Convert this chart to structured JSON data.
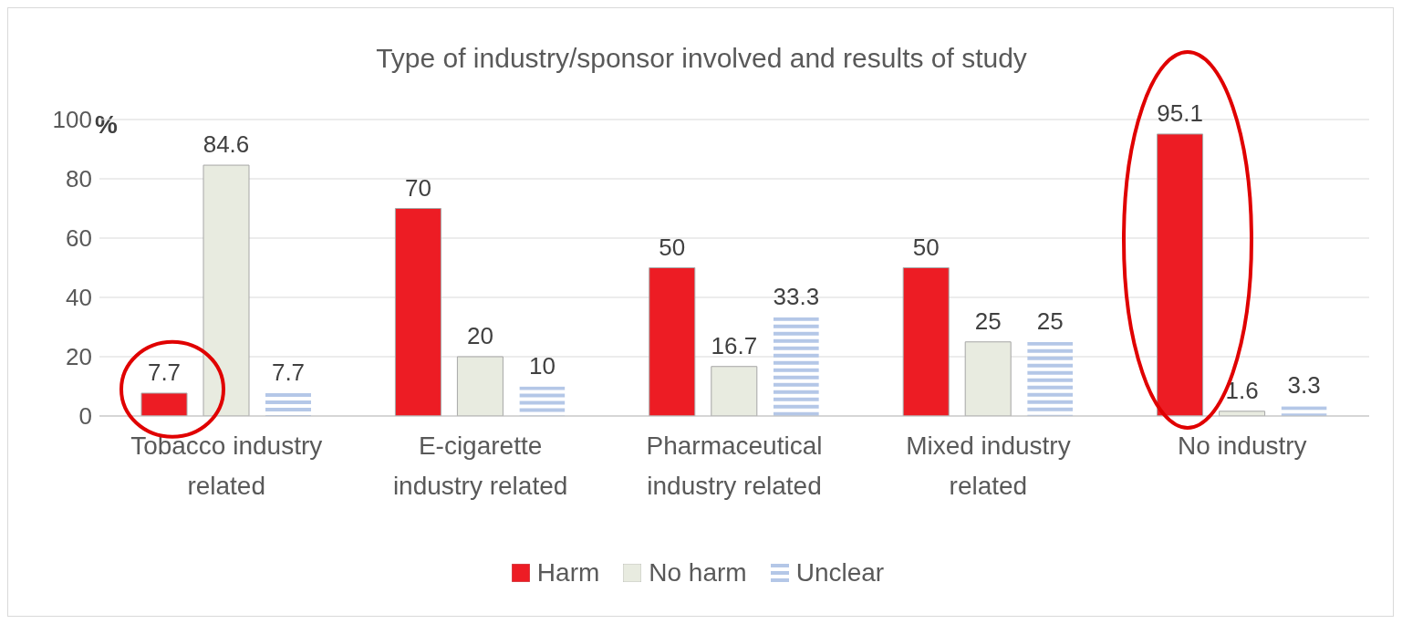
{
  "chart_data": {
    "type": "bar",
    "title": "Type of industry/sponsor involved and results of study",
    "ylabel": "%",
    "categories": [
      "Tobacco industry related",
      "E-cigarette industry related",
      "Pharmaceutical industry related",
      "Mixed industry related",
      "No industry"
    ],
    "series": [
      {
        "name": "Harm",
        "color": "#ed1c24",
        "values": [
          7.7,
          70,
          50,
          50,
          95.1
        ]
      },
      {
        "name": "No harm",
        "color": "#e8ebe0",
        "values": [
          84.6,
          20,
          16.7,
          25,
          1.6
        ]
      },
      {
        "name": "Unclear",
        "color": "#b4c7e7",
        "values": [
          7.7,
          10,
          33.3,
          25,
          3.3
        ]
      }
    ],
    "ylim": [
      0,
      100
    ],
    "yticks": [
      0,
      20,
      40,
      60,
      80,
      100
    ],
    "grid": "y",
    "legend": "bottom",
    "data_labels": true
  }
}
